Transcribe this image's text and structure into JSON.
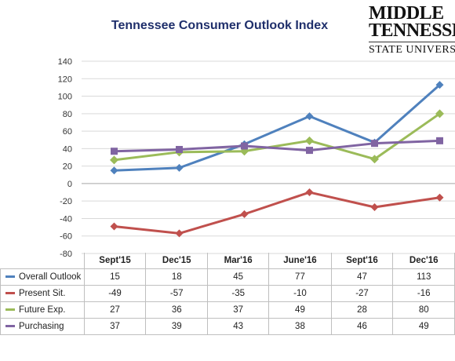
{
  "logo": {
    "line1": "MIDDLE",
    "line2": "TENNESSEE",
    "line3": "STATE UNIVERSITY"
  },
  "chart_data": {
    "type": "line",
    "title": "Tennessee Consumer Outlook Index",
    "categories": [
      "Sept'15",
      "Dec'15",
      "Mar'16",
      "June'16",
      "Sept'16",
      "Dec'16"
    ],
    "ylim": [
      -80,
      140
    ],
    "yticks": [
      140,
      120,
      100,
      80,
      60,
      40,
      20,
      0,
      -20,
      -40,
      -60,
      -80
    ],
    "grid": true,
    "legend": "data-table-below",
    "series": [
      {
        "name": "Overall Outlook",
        "color": "#4f81bd",
        "values": [
          15,
          18,
          45,
          77,
          47,
          113
        ]
      },
      {
        "name": "Present Sit.",
        "color": "#c0504d",
        "values": [
          -49,
          -57,
          -35,
          -10,
          -27,
          -16
        ]
      },
      {
        "name": "Future Exp.",
        "color": "#9bbb59",
        "values": [
          27,
          36,
          37,
          49,
          28,
          80
        ]
      },
      {
        "name": "Purchasing",
        "color": "#8064a2",
        "values": [
          37,
          39,
          43,
          38,
          46,
          49
        ]
      }
    ]
  }
}
